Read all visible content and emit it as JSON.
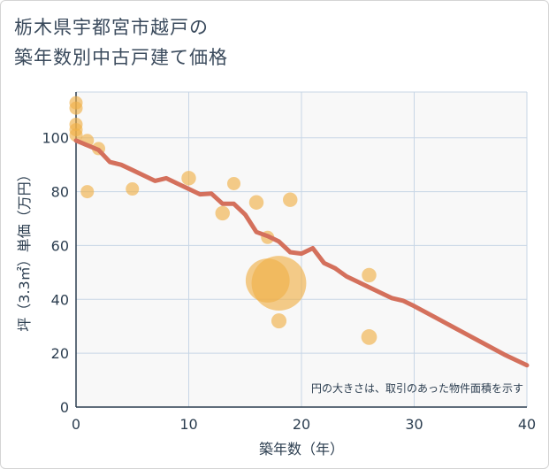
{
  "title_line1": "栃木県宇都宮市越戸の",
  "title_line2": "築年数別中古戸建て価格",
  "colors": {
    "line": "#d4705c",
    "bubble": "#f0b04a",
    "plot_bg": "#f8f8f8",
    "grid": "#c7d6e6",
    "text": "#2c3e50"
  },
  "chart_data": {
    "type": "scatter",
    "xlabel": "築年数（年）",
    "ylabel": "坪（3.3㎡）単価（万円）",
    "xlim": [
      0,
      40
    ],
    "ylim": [
      0,
      117
    ],
    "xticks": [
      0,
      10,
      20,
      30,
      40
    ],
    "yticks": [
      0,
      20,
      40,
      60,
      80,
      100
    ],
    "note": "円の大きさは、取引のあった物件面積を示す",
    "points": [
      {
        "x": 0,
        "y": 113,
        "size": 1
      },
      {
        "x": 0,
        "y": 111,
        "size": 1
      },
      {
        "x": 0,
        "y": 105,
        "size": 1
      },
      {
        "x": 0,
        "y": 103,
        "size": 1
      },
      {
        "x": 0,
        "y": 101,
        "size": 1
      },
      {
        "x": 1,
        "y": 99,
        "size": 1
      },
      {
        "x": 1,
        "y": 80,
        "size": 1
      },
      {
        "x": 2,
        "y": 96,
        "size": 1
      },
      {
        "x": 5,
        "y": 81,
        "size": 1
      },
      {
        "x": 10,
        "y": 85,
        "size": 1.2
      },
      {
        "x": 13,
        "y": 72,
        "size": 1.2
      },
      {
        "x": 14,
        "y": 83,
        "size": 1
      },
      {
        "x": 16,
        "y": 76,
        "size": 1.2
      },
      {
        "x": 17,
        "y": 63,
        "size": 1
      },
      {
        "x": 17,
        "y": 47,
        "size": 11
      },
      {
        "x": 18,
        "y": 46,
        "size": 17
      },
      {
        "x": 18,
        "y": 32,
        "size": 1.3
      },
      {
        "x": 19,
        "y": 77,
        "size": 1.2
      },
      {
        "x": 26,
        "y": 49,
        "size": 1.2
      },
      {
        "x": 26,
        "y": 26,
        "size": 1.4
      }
    ],
    "trend": {
      "x": [
        0,
        2,
        3,
        4,
        5,
        6,
        7,
        8,
        9,
        10,
        11,
        12,
        13,
        14,
        15,
        16,
        17,
        18,
        19,
        20,
        21,
        22,
        23,
        24,
        25,
        26,
        27,
        28,
        29,
        30,
        32,
        34,
        36,
        38,
        40
      ],
      "y": [
        99,
        95.5,
        91,
        90,
        88,
        86,
        84,
        85,
        83,
        81,
        79,
        79.3,
        75.5,
        75.5,
        71.5,
        65,
        63.5,
        61.5,
        57.5,
        57,
        59,
        53.5,
        51.5,
        48.5,
        46.5,
        44.5,
        42.5,
        40.5,
        39.5,
        37.5,
        33,
        28.5,
        24,
        19.5,
        15.5
      ]
    }
  }
}
